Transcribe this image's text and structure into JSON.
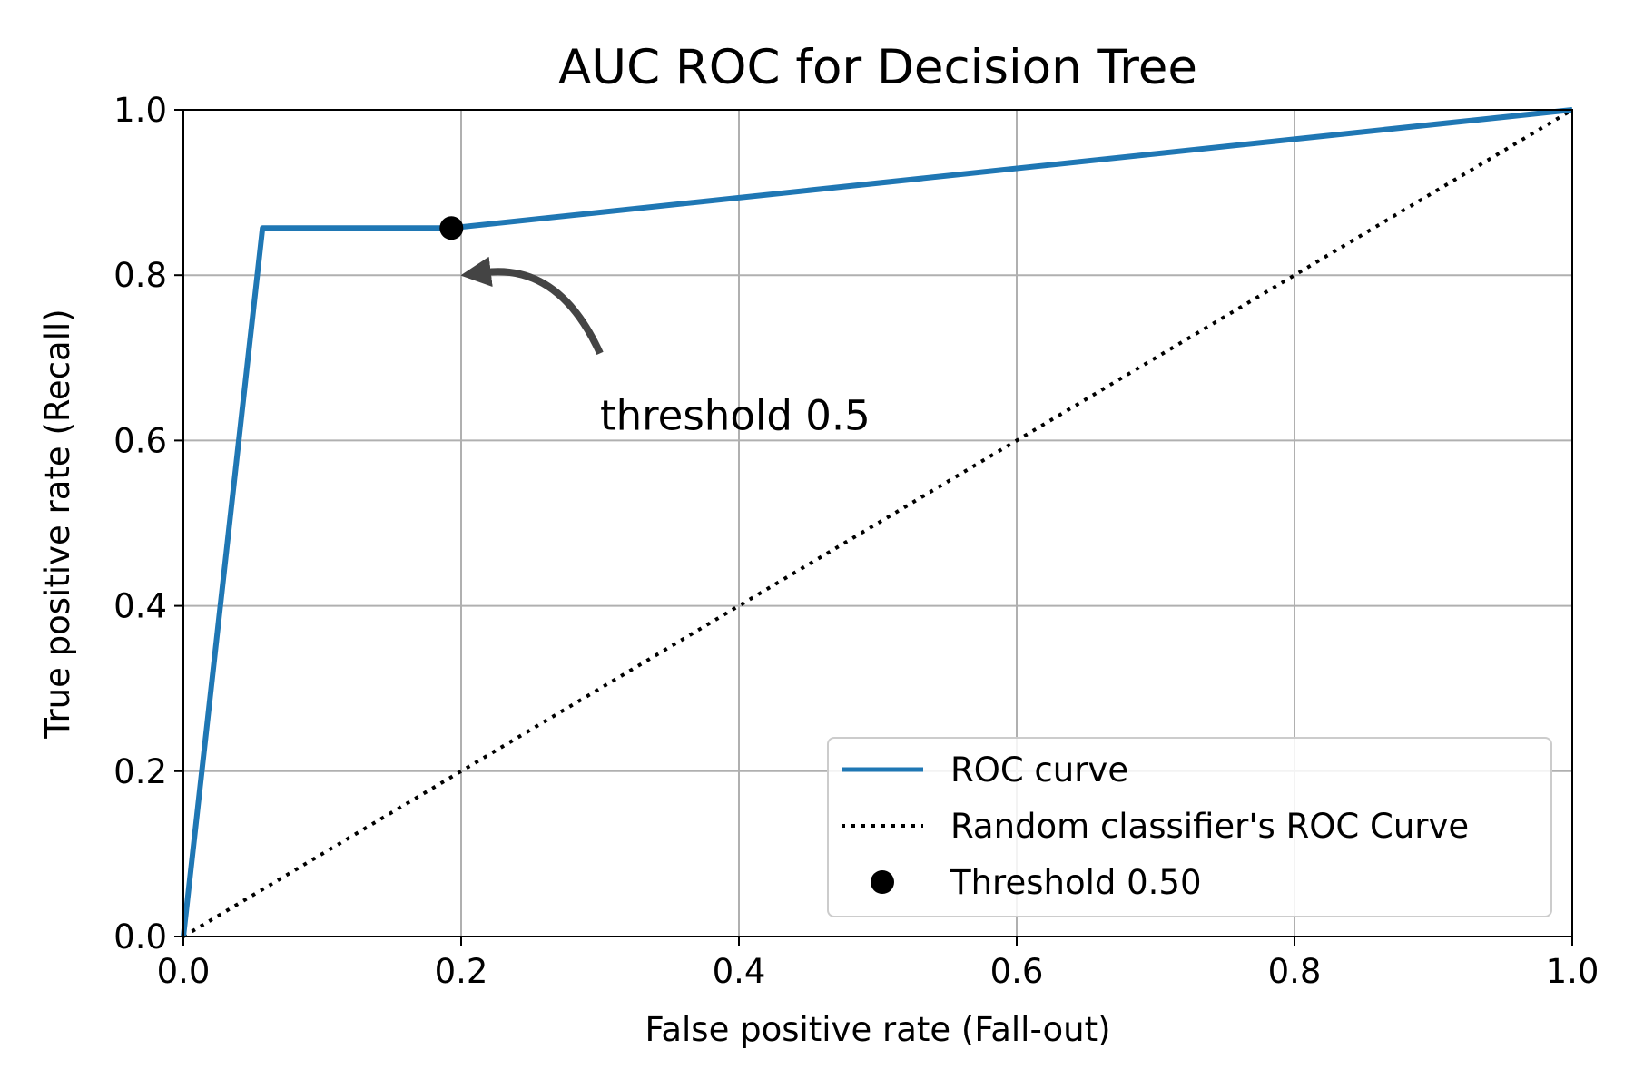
{
  "chart_data": {
    "type": "line",
    "title": "AUC ROC for Decision Tree",
    "xlabel": "False positive rate (Fall-out)",
    "ylabel": "True positive rate (Recall)",
    "xlim": [
      0.0,
      1.0
    ],
    "ylim": [
      0.0,
      1.0
    ],
    "x_ticks": [
      "0.0",
      "0.2",
      "0.4",
      "0.6",
      "0.8",
      "1.0"
    ],
    "y_ticks": [
      "0.0",
      "0.2",
      "0.4",
      "0.6",
      "0.8",
      "1.0"
    ],
    "grid": true,
    "legend_position": "bottom-right",
    "series": [
      {
        "name": "ROC curve",
        "style": "solid",
        "color": "#1f77b4",
        "x": [
          0.0,
          0.057,
          0.193,
          1.0
        ],
        "y": [
          0.0,
          0.857,
          0.857,
          1.0
        ]
      },
      {
        "name": "Random classifier's ROC Curve",
        "style": "dotted",
        "color": "#000000",
        "x": [
          0.0,
          1.0
        ],
        "y": [
          0.0,
          1.0
        ]
      },
      {
        "name": "Threshold 0.50",
        "style": "marker",
        "color": "#000000",
        "x": [
          0.193
        ],
        "y": [
          0.857
        ]
      }
    ],
    "annotation": {
      "text": "threshold 0.5",
      "point": [
        0.2,
        0.8
      ],
      "text_pos": [
        0.3,
        0.6
      ],
      "arrow_color": "#444444"
    }
  }
}
